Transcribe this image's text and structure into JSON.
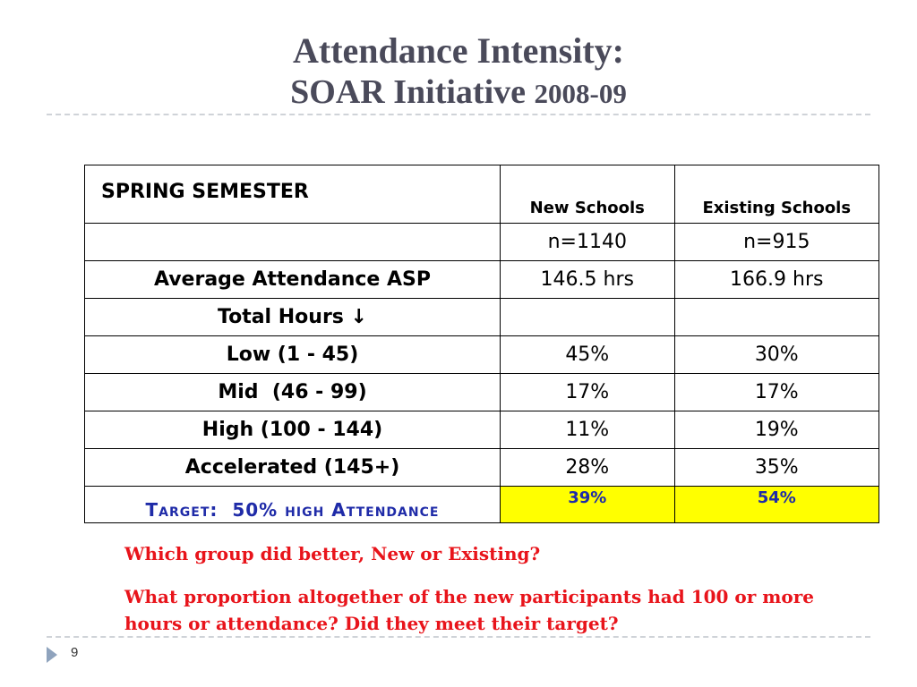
{
  "title": {
    "line1": "Attendance Intensity:",
    "line2_main": "SOAR Initiative ",
    "line2_year": "2008-09"
  },
  "table": {
    "header": {
      "label": "SPRING SEMESTER",
      "col1": "New Schools",
      "col2": "Existing Schools"
    },
    "rows": [
      {
        "label": "",
        "new": "n=1140",
        "existing": "n=915"
      },
      {
        "label": "Average Attendance ASP",
        "new": "146.5 hrs",
        "existing": "166.9 hrs"
      },
      {
        "label": "Total Hours ↓",
        "new": "",
        "existing": ""
      },
      {
        "label": "Low (1 - 45)",
        "new": "45%",
        "existing": "30%"
      },
      {
        "label": "Mid  (46 - 99)",
        "new": "17%",
        "existing": "17%"
      },
      {
        "label": "High (100 - 144)",
        "new": "11%",
        "existing": "19%"
      },
      {
        "label": "Accelerated (145+)",
        "new": "28%",
        "existing": "35%"
      }
    ],
    "target": {
      "label": "Target:  50% high Attendance",
      "new": "39%",
      "existing": "54%"
    }
  },
  "questions": {
    "q1": "Which group did better, New or Existing?",
    "q2": "What proportion altogether of the new participants had 100 or more hours or attendance?  Did they meet their target?"
  },
  "footer": {
    "page_number": "9"
  },
  "colors": {
    "title": "#4a4a5a",
    "question_red": "#e8141b",
    "target_blue": "#1f2ba8",
    "highlight_yellow": "#ffff00"
  }
}
